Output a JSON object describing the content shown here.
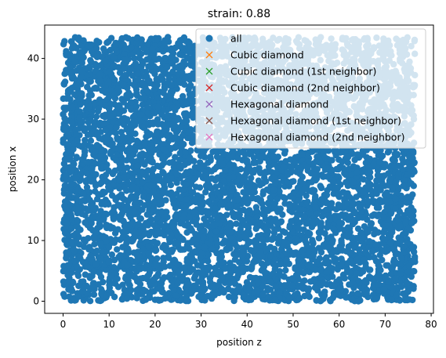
{
  "chart_data": {
    "type": "scatter",
    "title": "strain: 0.88",
    "xlabel": "position z",
    "ylabel": "position x",
    "xlim": [
      -4,
      80.5
    ],
    "ylim": [
      -2,
      45.5
    ],
    "xticks": [
      0,
      10,
      20,
      30,
      40,
      50,
      60,
      70,
      80
    ],
    "yticks": [
      0,
      10,
      20,
      30,
      40
    ],
    "grid": false,
    "legend_position": "top-right",
    "point_cloud": {
      "series": "all",
      "x_range": [
        0,
        76.5
      ],
      "y_range": [
        0,
        43.5
      ],
      "approx_count": 6000,
      "marker": "circle"
    },
    "series": [
      {
        "name": "all",
        "marker": "circle",
        "color": "#1f77b4"
      },
      {
        "name": "Cubic diamond",
        "marker": "x",
        "color": "#ff7f0e",
        "points": []
      },
      {
        "name": "Cubic diamond (1st neighbor)",
        "marker": "x",
        "color": "#2ca02c",
        "points": []
      },
      {
        "name": "Cubic diamond (2nd neighbor)",
        "marker": "x",
        "color": "#d62728",
        "points": []
      },
      {
        "name": "Hexagonal diamond",
        "marker": "x",
        "color": "#9467bd",
        "points": []
      },
      {
        "name": "Hexagonal diamond (1st neighbor)",
        "marker": "x",
        "color": "#8c564b",
        "points": []
      },
      {
        "name": "Hexagonal diamond (2nd neighbor)",
        "marker": "x",
        "color": "#e377c2",
        "points": []
      }
    ]
  }
}
